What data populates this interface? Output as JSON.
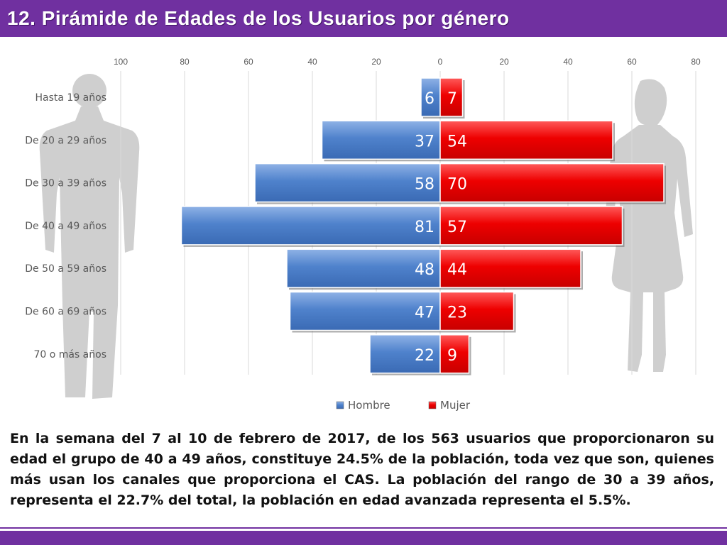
{
  "title": "12. Pirámide de Edades de los Usuarios por género",
  "caption": "En la semana del 7 al 10 de febrero de 2017, de los 563 usuarios  que proporcionaron su edad el grupo de 40 a 49 años,  constituye 24.5% de la población, toda vez que son, quienes más usan los canales que proporciona el CAS. La población del rango de 30 a 39 años, representa el 22.7% del total, la población en edad avanzada representa el 5.5%.",
  "colors": {
    "title_bar": "#7030a0",
    "hombre": "#4a7ec8",
    "mujer": "#ee0000"
  },
  "icons": [
    "man-silhouette-icon",
    "woman-silhouette-icon"
  ],
  "chart_data": {
    "type": "bar",
    "orientation": "horizontal",
    "categories": [
      "Hasta 19 años",
      "De 20 a 29 años",
      "De 30 a 39 años",
      "De 40 a 49 años",
      "De 50 a 59 años",
      "De 60 a 69 años",
      "70 o más años"
    ],
    "series": [
      {
        "name": "Hombre",
        "values": [
          6,
          37,
          58,
          81,
          48,
          47,
          22
        ],
        "side": "left"
      },
      {
        "name": "Mujer",
        "values": [
          7,
          54,
          70,
          57,
          44,
          23,
          9
        ],
        "side": "right"
      }
    ],
    "xticks": [
      "100",
      "80",
      "60",
      "40",
      "20",
      "0",
      "20",
      "40",
      "60",
      "80"
    ],
    "xlim_left": 100,
    "xlim_right": 80,
    "grid": true,
    "legend_position": "bottom"
  }
}
